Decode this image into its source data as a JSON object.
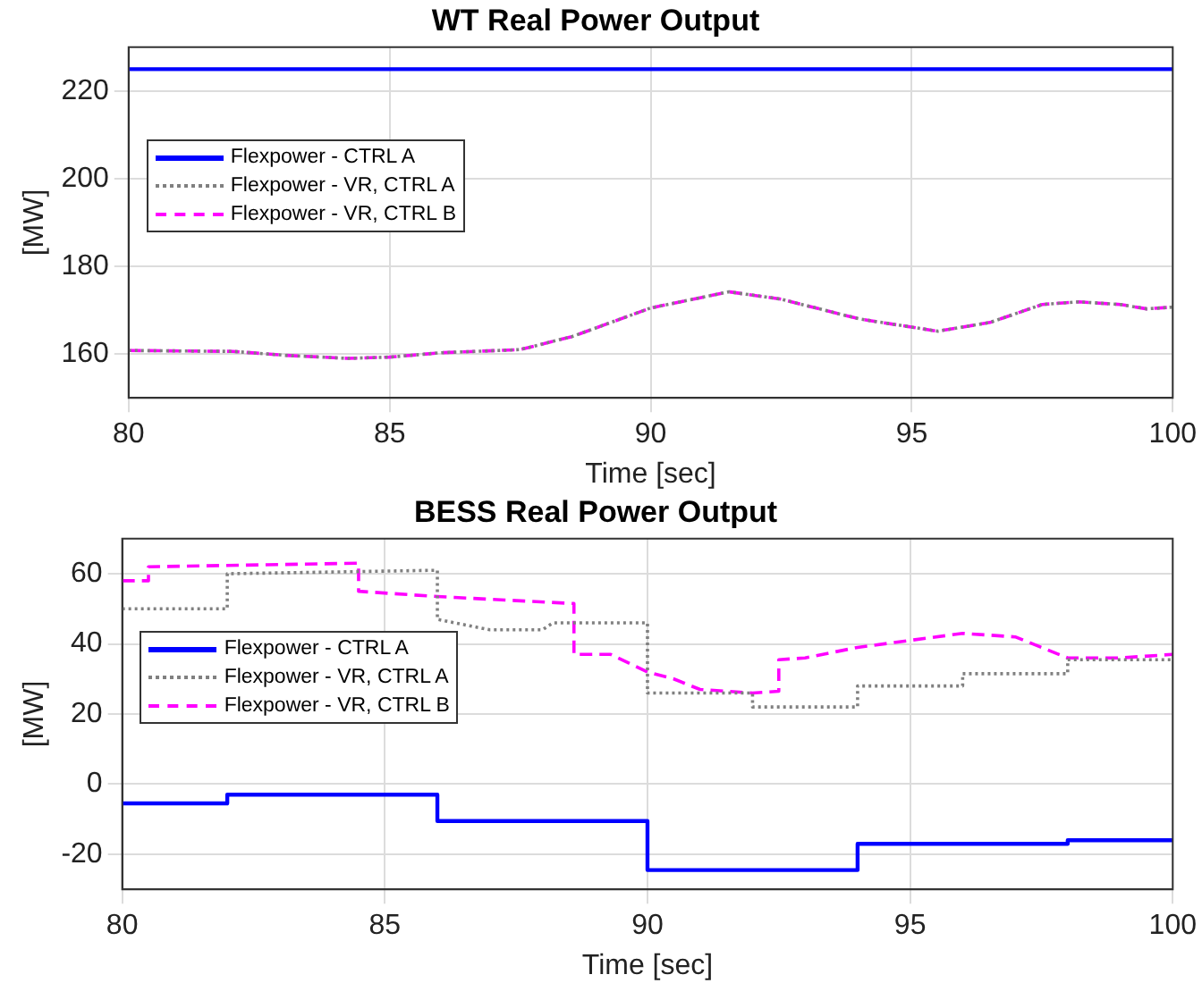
{
  "chart_data": [
    {
      "type": "line",
      "title": "WT Real Power Output",
      "xlabel": "Time [sec]",
      "ylabel": "[MW]",
      "xlim": [
        80,
        100
      ],
      "xticks": [
        80,
        85,
        90,
        95,
        100
      ],
      "ylim": [
        150,
        230
      ],
      "yticks": [
        160,
        180,
        200,
        220
      ],
      "grid": true,
      "legend": "top left",
      "marker": "none",
      "series": [
        {
          "name": "Flexpower - CTRL A",
          "color": "#0000ff",
          "line_style": "solid",
          "x": [
            80,
            85,
            90,
            95,
            100
          ],
          "values": [
            225,
            225,
            225,
            225,
            225
          ]
        },
        {
          "name": "Flexpower - VR, CTRL A",
          "color": "#808080",
          "line_style": "dotted",
          "x": [
            80,
            82,
            83,
            84.2,
            85,
            86,
            87.5,
            88.5,
            90,
            91.5,
            92.5,
            94,
            95.5,
            96.5,
            97.5,
            98.2,
            99,
            99.5,
            100
          ],
          "values": [
            160.8,
            160.6,
            159.7,
            159,
            159.3,
            160.3,
            161,
            164,
            170.5,
            174.2,
            172.5,
            168,
            165.2,
            167.2,
            171.3,
            171.9,
            171.3,
            170.3,
            170.7
          ]
        },
        {
          "name": "Flexpower - VR, CTRL B",
          "color": "#ff00ff",
          "line_style": "dashed",
          "x": [
            80,
            82,
            83,
            84.2,
            85,
            86,
            87.5,
            88.5,
            90,
            91.5,
            92.5,
            94,
            95.5,
            96.5,
            97.5,
            98.2,
            99,
            99.5,
            100
          ],
          "values": [
            160.8,
            160.6,
            159.7,
            159,
            159.3,
            160.3,
            161,
            164,
            170.5,
            174.2,
            172.5,
            168,
            165.2,
            167.2,
            171.3,
            171.9,
            171.3,
            170.3,
            170.7
          ]
        }
      ]
    },
    {
      "type": "line",
      "title": "BESS Real Power Output",
      "xlabel": "Time [sec]",
      "ylabel": "[MW]",
      "xlim": [
        80,
        100
      ],
      "xticks": [
        80,
        85,
        90,
        95,
        100
      ],
      "ylim": [
        -30,
        70
      ],
      "yticks": [
        -20,
        0,
        20,
        40,
        60
      ],
      "grid": true,
      "legend": "top left",
      "marker": "none",
      "series": [
        {
          "name": "Flexpower - CTRL A",
          "color": "#0000ff",
          "line_style": "solid",
          "x": [
            80,
            82,
            82,
            86,
            86,
            90,
            90,
            94,
            94,
            98,
            98,
            100
          ],
          "values": [
            -5.5,
            -5.5,
            -3,
            -3,
            -10.5,
            -10.5,
            -24.5,
            -24.5,
            -17,
            -17,
            -16,
            -16
          ]
        },
        {
          "name": "Flexpower - VR, CTRL A",
          "color": "#808080",
          "line_style": "dotted",
          "x": [
            80,
            82,
            82,
            86,
            86,
            87,
            88,
            88.2,
            90,
            90,
            92,
            92,
            94,
            94,
            96,
            96,
            98,
            98,
            100
          ],
          "values": [
            50,
            50,
            60,
            61,
            47,
            44,
            44,
            46,
            46,
            26,
            26,
            22,
            22,
            28,
            28,
            31.5,
            31.5,
            35.5,
            35.5
          ]
        },
        {
          "name": "Flexpower - VR, CTRL B",
          "color": "#ff00ff",
          "line_style": "dashed",
          "x": [
            80,
            80.5,
            80.5,
            84.5,
            84.5,
            86,
            88.6,
            88.6,
            89.3,
            90,
            90.5,
            91,
            92,
            92.5,
            92.5,
            93,
            94,
            95,
            96,
            97,
            98,
            99,
            100
          ],
          "values": [
            58,
            58,
            62,
            63,
            55,
            53.5,
            51.5,
            37,
            37,
            32,
            30,
            27,
            26,
            26.5,
            35.5,
            36,
            39,
            41,
            43,
            42,
            36,
            36,
            37
          ]
        }
      ]
    }
  ]
}
